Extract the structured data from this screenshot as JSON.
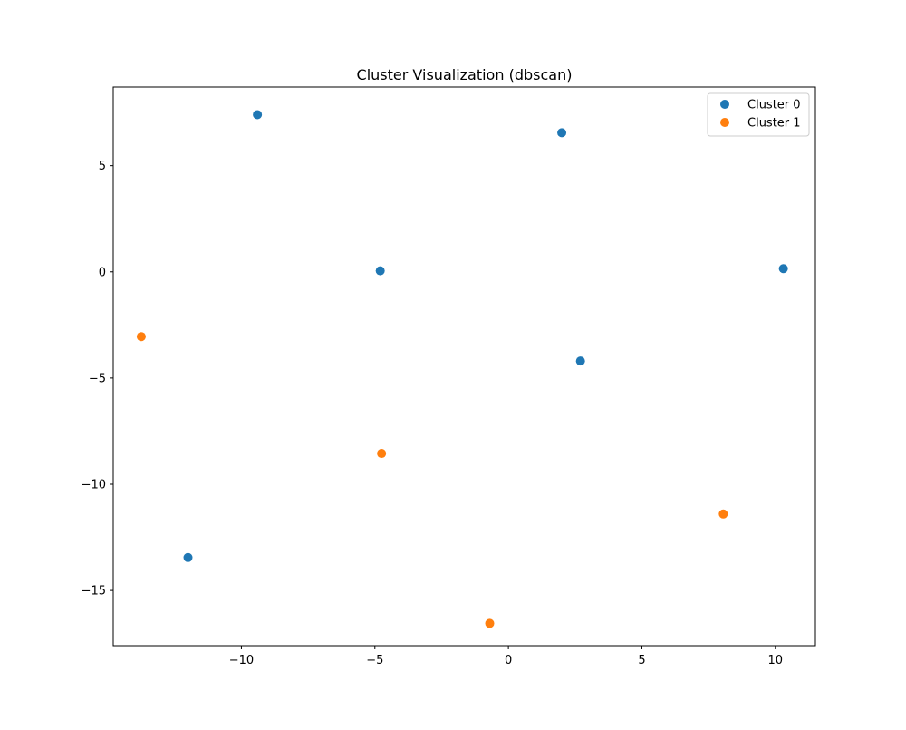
{
  "chart_data": {
    "type": "scatter",
    "title": "Cluster Visualization (dbscan)",
    "xlabel": "",
    "ylabel": "",
    "xlim": [
      -14.8,
      11.5
    ],
    "ylim": [
      -17.6,
      8.7
    ],
    "xticks": [
      -10,
      -5,
      0,
      5,
      10
    ],
    "yticks": [
      -15,
      -10,
      -5,
      0,
      5
    ],
    "xtick_labels": [
      "−10",
      "−5",
      "0",
      "5",
      "10"
    ],
    "ytick_labels": [
      "−15",
      "−10",
      "−5",
      "0",
      "5"
    ],
    "grid": false,
    "legend_position": "top-right",
    "series": [
      {
        "name": "Cluster 0",
        "color": "#1f77b4",
        "points": [
          {
            "x": -9.4,
            "y": 7.4
          },
          {
            "x": 2.0,
            "y": 6.55
          },
          {
            "x": -4.8,
            "y": 0.05
          },
          {
            "x": 10.3,
            "y": 0.15
          },
          {
            "x": 2.7,
            "y": -4.2
          },
          {
            "x": -12.0,
            "y": -13.45
          }
        ]
      },
      {
        "name": "Cluster 1",
        "color": "#ff7f0e",
        "points": [
          {
            "x": -13.75,
            "y": -3.05
          },
          {
            "x": -4.75,
            "y": -8.55
          },
          {
            "x": 8.05,
            "y": -11.4
          },
          {
            "x": -0.7,
            "y": -16.55
          }
        ]
      }
    ]
  }
}
